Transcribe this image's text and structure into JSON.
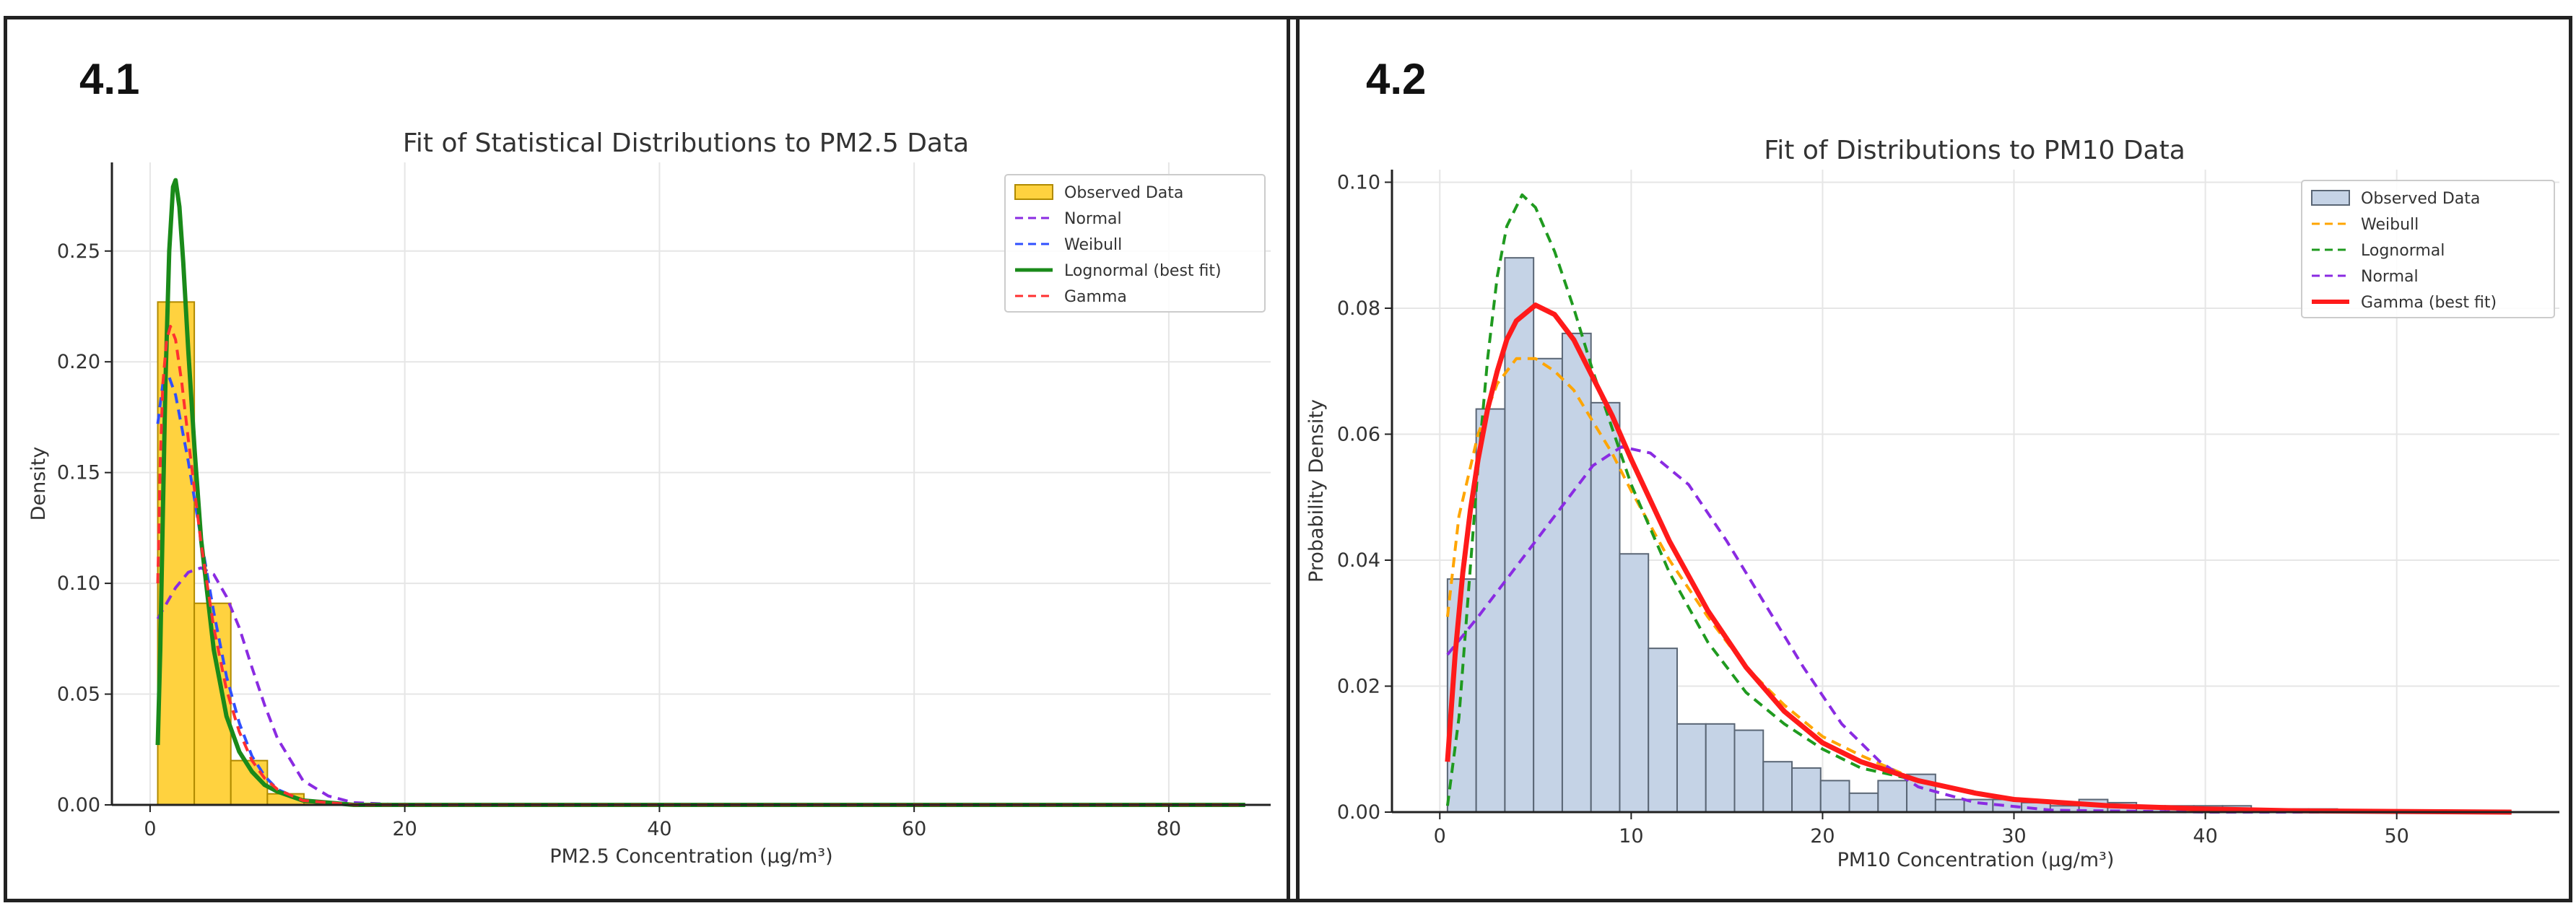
{
  "panels": [
    {
      "label": "4.1"
    },
    {
      "label": "4.2"
    }
  ],
  "chart_data": [
    {
      "type": "bar",
      "title": "Fit of Statistical Distributions to PM2.5 Data",
      "xlabel": "PM2.5 Concentration (μg/m³)",
      "ylabel": "Density",
      "xlim": [
        -3,
        88
      ],
      "ylim": [
        0,
        0.29
      ],
      "xticks": [
        0,
        20,
        40,
        60,
        80
      ],
      "xtick_labels": [
        "0",
        "20",
        "40",
        "60",
        "80"
      ],
      "yticks": [
        0.0,
        0.05,
        0.1,
        0.15,
        0.2,
        0.25
      ],
      "ytick_labels": [
        "0.00",
        "0.05",
        "0.10",
        "0.15",
        "0.20",
        "0.25"
      ],
      "grid": true,
      "legend_position": "top-right",
      "histogram": {
        "name": "Observed Data",
        "color": "#ffd23f",
        "edge_color": "#b08a00",
        "bin_edges": [
          0.6,
          3.47,
          6.34,
          9.21,
          12.08,
          14.95
        ],
        "values": [
          0.227,
          0.091,
          0.02,
          0.005,
          0.001
        ]
      },
      "series": [
        {
          "name": "Normal",
          "color": "#8a2be2",
          "dashed": true,
          "width": 4,
          "x": [
            0.6,
            1,
            2,
            3,
            4,
            5,
            6,
            7,
            8,
            9,
            10,
            12,
            14,
            16,
            20,
            86
          ],
          "y": [
            0.084,
            0.088,
            0.098,
            0.105,
            0.107,
            0.104,
            0.094,
            0.08,
            0.062,
            0.045,
            0.03,
            0.011,
            0.004,
            0.001,
            0.0,
            0.0
          ]
        },
        {
          "name": "Weibull",
          "color": "#3050ff",
          "dashed": true,
          "width": 4,
          "x": [
            0.6,
            1,
            1.5,
            2,
            3,
            4,
            5,
            6,
            7,
            8,
            9,
            10,
            12,
            14,
            16,
            20,
            86
          ],
          "y": [
            0.172,
            0.19,
            0.193,
            0.185,
            0.155,
            0.12,
            0.087,
            0.058,
            0.037,
            0.022,
            0.013,
            0.007,
            0.002,
            0.0005,
            0.0,
            0.0,
            0.0
          ]
        },
        {
          "name": "Lognormal (best fit)",
          "color": "#1a8a1a",
          "dashed": false,
          "width": 6,
          "x": [
            0.6,
            0.8,
            1,
            1.2,
            1.5,
            1.8,
            2,
            2.3,
            2.6,
            3,
            3.5,
            4,
            5,
            6,
            7,
            8,
            9,
            10,
            12,
            14,
            16,
            20,
            86
          ],
          "y": [
            0.027,
            0.07,
            0.13,
            0.19,
            0.25,
            0.279,
            0.282,
            0.27,
            0.245,
            0.205,
            0.16,
            0.12,
            0.07,
            0.04,
            0.024,
            0.015,
            0.009,
            0.006,
            0.002,
            0.001,
            0.0,
            0.0,
            0.0
          ]
        },
        {
          "name": "Gamma",
          "color": "#ff3030",
          "dashed": true,
          "width": 4,
          "x": [
            0.6,
            0.8,
            1,
            1.3,
            1.6,
            2,
            2.5,
            3,
            4,
            5,
            6,
            7,
            8,
            9,
            10,
            12,
            14,
            16,
            20,
            86
          ],
          "y": [
            0.1,
            0.155,
            0.19,
            0.21,
            0.216,
            0.21,
            0.19,
            0.165,
            0.118,
            0.08,
            0.052,
            0.033,
            0.02,
            0.012,
            0.007,
            0.002,
            0.001,
            0.0,
            0.0,
            0.0
          ]
        }
      ]
    },
    {
      "type": "bar",
      "title": "Fit of Distributions to PM10 Data",
      "xlabel": "PM10 Concentration (μg/m³)",
      "ylabel": "Probability Density",
      "xlim": [
        -2.5,
        58.5
      ],
      "ylim": [
        0,
        0.102
      ],
      "xticks": [
        0,
        10,
        20,
        30,
        40,
        50
      ],
      "xtick_labels": [
        "0",
        "10",
        "20",
        "30",
        "40",
        "50"
      ],
      "yticks": [
        0.0,
        0.02,
        0.04,
        0.06,
        0.08,
        0.1
      ],
      "ytick_labels": [
        "0.00",
        "0.02",
        "0.04",
        "0.06",
        "0.08",
        "0.10"
      ],
      "grid": true,
      "legend_position": "top-right",
      "histogram": {
        "name": "Observed Data",
        "color": "#c5d3e6",
        "edge_color": "#5a6675",
        "bin_edges": [
          0.4,
          1.9,
          3.4,
          4.9,
          6.4,
          7.9,
          9.4,
          10.9,
          12.4,
          13.9,
          15.4,
          16.9,
          18.4,
          19.9,
          21.4,
          22.9,
          24.4,
          25.9,
          27.4,
          28.9,
          30.4,
          31.9,
          33.4,
          34.9,
          36.4,
          37.9,
          39.4,
          40.9,
          42.4,
          43.9,
          45.4,
          46.9,
          48.4,
          49.9,
          51.4,
          52.9,
          54.4,
          55.9
        ],
        "values": [
          0.037,
          0.064,
          0.088,
          0.072,
          0.076,
          0.065,
          0.041,
          0.026,
          0.014,
          0.014,
          0.013,
          0.008,
          0.007,
          0.005,
          0.003,
          0.005,
          0.006,
          0.002,
          0.002,
          0.002,
          0.0015,
          0.001,
          0.002,
          0.0015,
          0.001,
          0.001,
          0.001,
          0.001,
          0.0005,
          0.0005,
          0.0005,
          0.0003,
          0.0003,
          0.0003,
          0.0003,
          0.0002,
          0.0002
        ]
      },
      "series": [
        {
          "name": "Weibull",
          "color": "#ffa500",
          "dashed": true,
          "width": 4,
          "x": [
            0.4,
            1,
            2,
            3,
            4,
            5,
            6,
            7,
            8,
            9,
            10,
            12,
            14,
            16,
            18,
            20,
            22,
            25,
            28,
            30,
            35,
            40,
            45,
            50,
            56
          ],
          "y": [
            0.031,
            0.047,
            0.06,
            0.068,
            0.072,
            0.072,
            0.07,
            0.067,
            0.062,
            0.057,
            0.051,
            0.04,
            0.031,
            0.023,
            0.017,
            0.012,
            0.009,
            0.005,
            0.003,
            0.002,
            0.001,
            0.0003,
            0.0001,
            0.0,
            0.0
          ]
        },
        {
          "name": "Lognormal",
          "color": "#1f9a1f",
          "dashed": true,
          "width": 4,
          "x": [
            0.4,
            1,
            1.5,
            2,
            2.5,
            3,
            3.5,
            4.3,
            5,
            6,
            7,
            8,
            9,
            10,
            12,
            14,
            16,
            18,
            20,
            22,
            25,
            30,
            35,
            40,
            45,
            50,
            56
          ],
          "y": [
            0.001,
            0.015,
            0.035,
            0.055,
            0.072,
            0.085,
            0.093,
            0.098,
            0.096,
            0.089,
            0.08,
            0.07,
            0.061,
            0.052,
            0.038,
            0.027,
            0.019,
            0.014,
            0.01,
            0.007,
            0.005,
            0.002,
            0.001,
            0.0005,
            0.0002,
            0.0001,
            0.0
          ]
        },
        {
          "name": "Normal",
          "color": "#8a2be2",
          "dashed": true,
          "width": 4,
          "x": [
            0.4,
            2,
            4,
            6,
            8,
            9.5,
            11,
            13,
            15,
            17,
            19,
            21,
            23,
            25,
            28,
            32,
            40,
            56
          ],
          "y": [
            0.025,
            0.031,
            0.039,
            0.047,
            0.055,
            0.058,
            0.057,
            0.052,
            0.043,
            0.033,
            0.023,
            0.014,
            0.008,
            0.004,
            0.0015,
            0.0003,
            0.0,
            0.0
          ]
        },
        {
          "name": "Gamma (best fit)",
          "color": "#ff1a1a",
          "dashed": false,
          "width": 7,
          "x": [
            0.4,
            0.8,
            1.2,
            1.6,
            2,
            2.5,
            3,
            3.5,
            4,
            5,
            6,
            7,
            8,
            9,
            10,
            12,
            14,
            16,
            18,
            20,
            22,
            25,
            28,
            30,
            35,
            40,
            45,
            50,
            56
          ],
          "y": [
            0.008,
            0.025,
            0.038,
            0.048,
            0.056,
            0.064,
            0.07,
            0.075,
            0.078,
            0.0805,
            0.079,
            0.075,
            0.069,
            0.063,
            0.056,
            0.043,
            0.032,
            0.023,
            0.016,
            0.011,
            0.008,
            0.005,
            0.003,
            0.002,
            0.001,
            0.0005,
            0.0002,
            0.0001,
            0.0
          ]
        }
      ]
    }
  ]
}
